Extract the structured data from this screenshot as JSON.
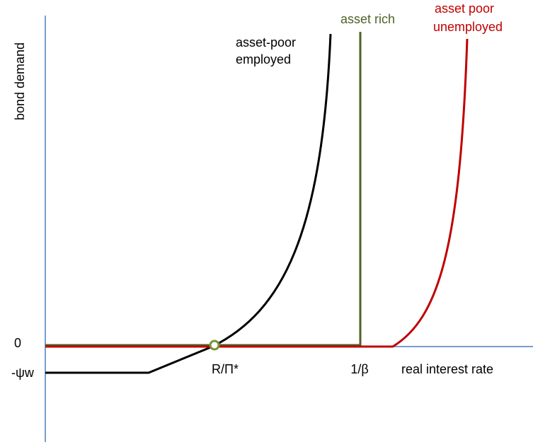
{
  "axes": {
    "y_label": "bond demand",
    "x_label": "real interest rate",
    "zero": "0",
    "neg_level": "-ψw",
    "r_star": "R/Π*",
    "inv_beta": "1/β"
  },
  "curves": {
    "asset_poor_employed": [
      "asset-poor",
      "employed"
    ],
    "asset_rich": [
      "asset rich"
    ],
    "asset_poor_unemployed": [
      "asset poor",
      "unemployed"
    ]
  }
}
